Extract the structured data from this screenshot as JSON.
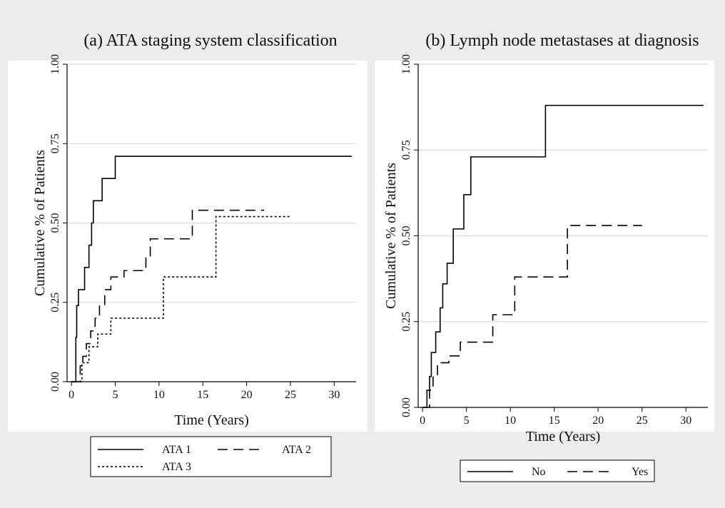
{
  "chart_data": [
    {
      "type": "line",
      "step": true,
      "title": "(a)  ATA staging system classification",
      "xlabel": "Time (Years)",
      "ylabel": "Cumulative % of Patients",
      "xlim": [
        -0.5,
        32.5
      ],
      "ylim": [
        0,
        1
      ],
      "xticks": [
        "0",
        "5",
        "10",
        "15",
        "20",
        "25",
        "30"
      ],
      "yticks": [
        "0.00",
        "0.25",
        "0.50",
        "0.75",
        "1.00"
      ],
      "grid": true,
      "legend_position": "bottom",
      "legend_columns": 2,
      "series": [
        {
          "name": "ATA 1",
          "style": "solid",
          "x": [
            0,
            0.5,
            0.6,
            0.8,
            1,
            1.5,
            2,
            2.3,
            2.5,
            3.5,
            5,
            32
          ],
          "y": [
            0,
            0.14,
            0.24,
            0.29,
            0.29,
            0.36,
            0.43,
            0.5,
            0.57,
            0.64,
            0.71,
            0.71
          ]
        },
        {
          "name": "ATA 2",
          "style": "dashed",
          "x": [
            0,
            1,
            1.3,
            1.7,
            2.2,
            2.7,
            3.2,
            3.8,
            4.5,
            6,
            8.5,
            9,
            13.8,
            22
          ],
          "y": [
            0,
            0.05,
            0.08,
            0.12,
            0.16,
            0.2,
            0.24,
            0.29,
            0.33,
            0.35,
            0.39,
            0.45,
            0.54,
            0.54
          ]
        },
        {
          "name": "ATA 3",
          "style": "dotted",
          "x": [
            0,
            1.2,
            2,
            3,
            4.5,
            10.5,
            16.5,
            25
          ],
          "y": [
            0,
            0.06,
            0.11,
            0.15,
            0.2,
            0.33,
            0.52,
            0.52
          ]
        }
      ]
    },
    {
      "type": "line",
      "step": true,
      "title": "(b) Lymph node metastases at diagnosis",
      "xlabel": "Time (Years)",
      "ylabel": "Cumulative % of Patients",
      "xlim": [
        -0.5,
        32.5
      ],
      "ylim": [
        0,
        1
      ],
      "xticks": [
        "0",
        "5",
        "10",
        "15",
        "20",
        "25",
        "30"
      ],
      "yticks": [
        "0.00",
        "0.25",
        "0.50",
        "0.75",
        "1.00"
      ],
      "grid": true,
      "legend_position": "bottom",
      "legend_columns": 2,
      "series": [
        {
          "name": "No",
          "style": "solid",
          "x": [
            0,
            0.5,
            0.8,
            1,
            1.5,
            2,
            2.3,
            2.8,
            3.5,
            4.7,
            5.5,
            14,
            32
          ],
          "y": [
            0,
            0.05,
            0.09,
            0.16,
            0.22,
            0.29,
            0.36,
            0.42,
            0.52,
            0.62,
            0.73,
            0.88,
            0.88
          ]
        },
        {
          "name": "Yes",
          "style": "dashed",
          "x": [
            0,
            0.8,
            1.2,
            1.7,
            3,
            4.3,
            8,
            10.5,
            16.5,
            25
          ],
          "y": [
            0,
            0.05,
            0.09,
            0.13,
            0.15,
            0.19,
            0.27,
            0.38,
            0.53,
            0.53
          ]
        }
      ]
    }
  ]
}
